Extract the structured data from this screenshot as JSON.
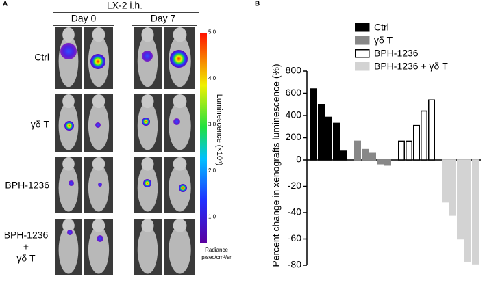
{
  "panel_a": {
    "label": "A",
    "header": "LX-2 i.h.",
    "days": [
      "Day 0",
      "Day 7"
    ],
    "rows": [
      "Ctrl",
      "γδ T",
      "BPH-1236",
      [
        "BPH-1236",
        "+",
        "γδ T"
      ]
    ],
    "colorbar": {
      "title": "Luminescence (×10⁶)",
      "ticks": [
        {
          "value": 5,
          "label": "5.0"
        },
        {
          "value": 4,
          "label": "4.0"
        },
        {
          "value": 3,
          "label": "3.0"
        },
        {
          "value": 2,
          "label": "2.0"
        },
        {
          "value": 1,
          "label": "1.0"
        }
      ],
      "unit": [
        "Radiance",
        "p/sec/cm²/sr"
      ]
    }
  },
  "chart_data": {
    "type": "bar",
    "label": "B",
    "ylabel": "Percent change in xenografts luminescence (%)",
    "ylim": [
      -80,
      800
    ],
    "y_segments": [
      [
        -80,
        0
      ],
      [
        0,
        800
      ]
    ],
    "yticks": [
      -80,
      -60,
      -40,
      -20,
      0,
      200,
      400,
      600,
      800
    ],
    "series": [
      {
        "name": "Ctrl",
        "color": "#000000",
        "stroke": "#000000",
        "values": [
          640,
          500,
          385,
          330,
          80
        ]
      },
      {
        "name": "γδ T",
        "color": "#888888",
        "stroke": "#888888",
        "values": [
          170,
          95,
          60,
          -3,
          -4
        ]
      },
      {
        "name": "BPH-1236",
        "color": "#ffffff",
        "stroke": "#000000",
        "values": [
          170,
          170,
          310,
          440,
          540
        ]
      },
      {
        "name": "BPH-1236    + γδ T",
        "color": "#d3d3d3",
        "stroke": "#d3d3d3",
        "values": [
          -32,
          -42,
          -60,
          -77,
          -79
        ]
      }
    ],
    "legend": "top-right"
  }
}
